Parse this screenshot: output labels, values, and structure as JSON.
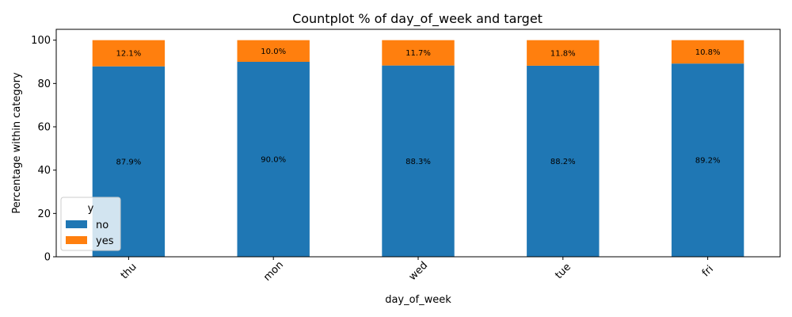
{
  "chart_data": {
    "type": "bar",
    "stacked": true,
    "title": "Countplot % of day_of_week and target",
    "xlabel": "day_of_week",
    "ylabel": "Percentage within category",
    "categories": [
      "thu",
      "mon",
      "wed",
      "tue",
      "fri"
    ],
    "series": [
      {
        "name": "no",
        "color": "#1f77b4",
        "values": [
          87.9,
          90.0,
          88.3,
          88.2,
          89.2
        ],
        "labels": [
          "87.9%",
          "90.0%",
          "88.3%",
          "88.2%",
          "89.2%"
        ]
      },
      {
        "name": "yes",
        "color": "#ff7f0e",
        "values": [
          12.1,
          10.0,
          11.7,
          11.8,
          10.8
        ],
        "labels": [
          "12.1%",
          "10.0%",
          "11.7%",
          "11.8%",
          "10.8%"
        ]
      }
    ],
    "ylim": [
      0,
      105
    ],
    "yticks": [
      0,
      20,
      40,
      60,
      80,
      100
    ],
    "xtick_rotation": 45,
    "grid": false,
    "legend": {
      "title": "y",
      "placement": "lower-left"
    }
  }
}
